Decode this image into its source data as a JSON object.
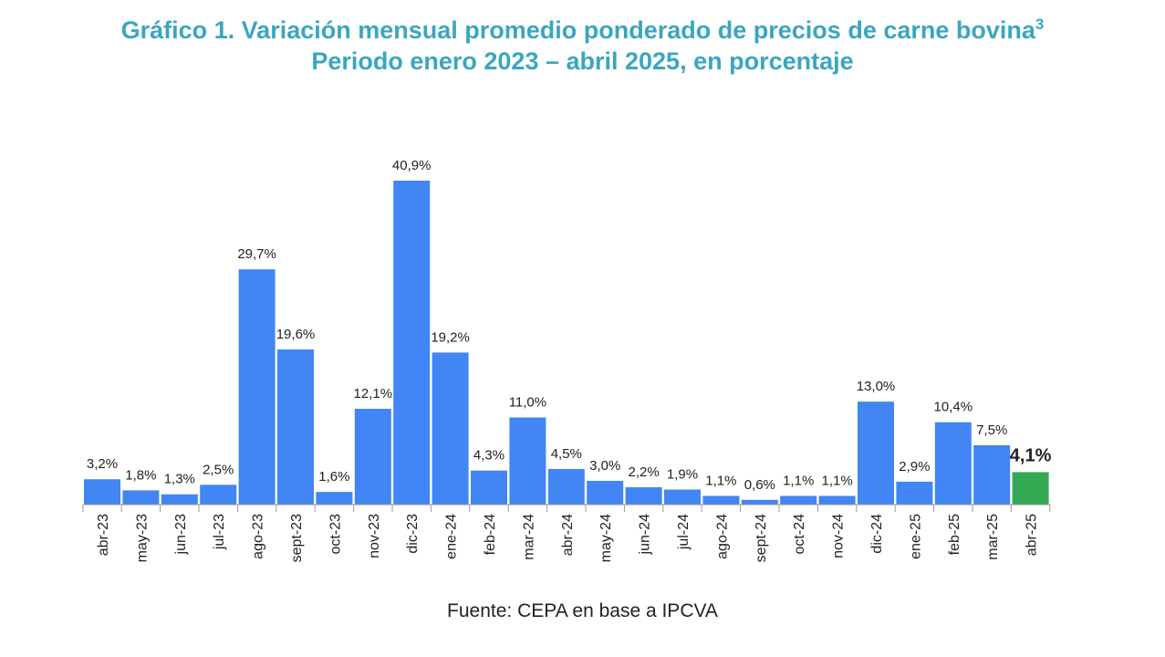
{
  "header": {
    "title_line1": "Gráfico 1. Variación mensual promedio ponderado de precios de carne bovina",
    "title_superscript": "3",
    "title_line2": "Periodo enero 2023 – abril 2025, en porcentaje"
  },
  "source": "Fuente: CEPA en base a IPCVA",
  "colors": {
    "title": "#3aa6c0",
    "bar": "#4285f4",
    "highlight": "#34a853",
    "text": "#222222",
    "axis": "#999999"
  },
  "chart_data": {
    "type": "bar",
    "title": "Gráfico 1. Variación mensual promedio ponderado de precios de carne bovina",
    "subtitle": "Periodo enero 2023 – abril 2025, en porcentaje",
    "categories": [
      "abr-23",
      "may-23",
      "jun-23",
      "jul-23",
      "ago-23",
      "sept-23",
      "oct-23",
      "nov-23",
      "dic-23",
      "ene-24",
      "feb-24",
      "mar-24",
      "abr-24",
      "may-24",
      "jun-24",
      "jul-24",
      "ago-24",
      "sept-24",
      "oct-24",
      "nov-24",
      "dic-24",
      "ene-25",
      "feb-25",
      "mar-25",
      "abr-25"
    ],
    "values": [
      3.2,
      1.8,
      1.3,
      2.5,
      29.7,
      19.6,
      1.6,
      12.1,
      40.9,
      19.2,
      4.3,
      11.0,
      4.5,
      3.0,
      2.2,
      1.9,
      1.1,
      0.6,
      1.1,
      1.1,
      13.0,
      2.9,
      10.4,
      7.5,
      4.1
    ],
    "data_labels": [
      "3,2%",
      "1,8%",
      "1,3%",
      "2,5%",
      "29,7%",
      "19,6%",
      "1,6%",
      "12,1%",
      "40,9%",
      "19,2%",
      "4,3%",
      "11,0%",
      "4,5%",
      "3,0%",
      "2,2%",
      "1,9%",
      "1,1%",
      "0,6%",
      "1,1%",
      "1,1%",
      "13,0%",
      "2,9%",
      "10,4%",
      "7,5%",
      "4,1%"
    ],
    "highlight_category": "abr-25",
    "ylim": [
      0,
      41
    ],
    "xlabel": "",
    "ylabel": "",
    "grid": false,
    "legend": "none"
  }
}
